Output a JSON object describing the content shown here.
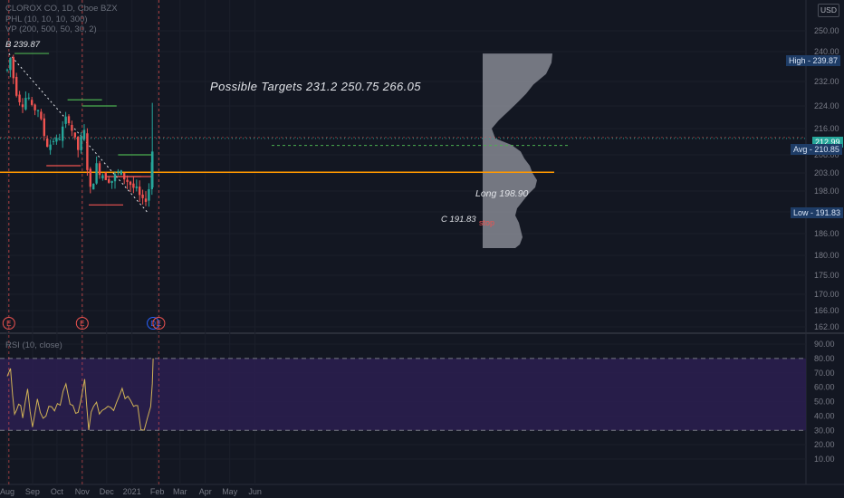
{
  "header": {
    "symbol_line": "CLOROX CO, 1D, Cboe BZX",
    "indicator_phl": "PHL (10, 10, 10, 300)",
    "indicator_vp": "VP (200, 500, 50, 30, 2)",
    "currency_button": "USD"
  },
  "annotations": {
    "b_label": "B 239.87",
    "targets": "Possible Targets  231.2  250.75  266.05",
    "long": "Long 198.90",
    "c_label": "C 191.83",
    "stop": "stop"
  },
  "price_tags": {
    "high": "High - 239.87",
    "last": "212.99",
    "avg": "Avg - 210.85",
    "low": "Low - 191.83"
  },
  "rsi_panel": {
    "title": "RSI (10, close)"
  },
  "events": [
    "E",
    "E",
    "D",
    "E"
  ],
  "colors": {
    "background": "#131722",
    "up": "#26a69a",
    "down": "#ef5350",
    "rsi": "#d1b356",
    "rsi_band": "#2a1e4e",
    "support": "#ff9800"
  },
  "chart_data": [
    {
      "type": "candlestick",
      "title": "CLOROX CO, 1D, Cboe BZX",
      "price_axis_ticks": [
        250.0,
        240.0,
        232.0,
        224.0,
        216.0,
        208.0,
        203.0,
        198.0,
        192.0,
        186.0,
        180.0,
        175.0,
        170.0,
        166.0,
        162.0
      ],
      "time_axis_ticks": [
        "Aug",
        "Sep",
        "Oct",
        "Nov",
        "Dec",
        "2021",
        "Feb",
        "Mar",
        "Apr",
        "May",
        "Jun"
      ],
      "close_path": [
        [
          "2020-08-01",
          235
        ],
        [
          "2020-08-05",
          238.5
        ],
        [
          "2020-08-10",
          231
        ],
        [
          "2020-08-14",
          227
        ],
        [
          "2020-08-20",
          225
        ],
        [
          "2020-08-26",
          228
        ],
        [
          "2020-09-01",
          222
        ],
        [
          "2020-09-07",
          224
        ],
        [
          "2020-09-14",
          215
        ],
        [
          "2020-09-21",
          210
        ],
        [
          "2020-09-25",
          213
        ],
        [
          "2020-10-01",
          212
        ],
        [
          "2020-10-07",
          215
        ],
        [
          "2020-10-14",
          221
        ],
        [
          "2020-10-20",
          215
        ],
        [
          "2020-10-26",
          209
        ],
        [
          "2020-10-30",
          212
        ],
        [
          "2020-11-04",
          215
        ],
        [
          "2020-11-06",
          211
        ],
        [
          "2020-11-09",
          196
        ],
        [
          "2020-11-13",
          200
        ],
        [
          "2020-11-19",
          205
        ],
        [
          "2020-11-25",
          203
        ],
        [
          "2020-12-01",
          202
        ],
        [
          "2020-12-08",
          201
        ],
        [
          "2020-12-15",
          203
        ],
        [
          "2020-12-22",
          202
        ],
        [
          "2020-12-30",
          200
        ],
        [
          "2021-01-06",
          198
        ],
        [
          "2021-01-11",
          196
        ],
        [
          "2021-01-15",
          194
        ],
        [
          "2021-01-19",
          197
        ],
        [
          "2021-01-22",
          199
        ],
        [
          "2021-01-26",
          207
        ],
        [
          "2021-01-27",
          213
        ]
      ],
      "lines": {
        "support_horizontal": 203.2,
        "avg": 210.85,
        "last_price": 212.99,
        "resistance_dotted": 213.3
      },
      "high": 239.87,
      "low": 191.83,
      "last": 212.99,
      "avg": 210.85
    },
    {
      "type": "line",
      "title": "RSI (10, close)",
      "y_axis_ticks": [
        90.0,
        80.0,
        70.0,
        60.0,
        50.0,
        40.0,
        30.0,
        20.0,
        10.0
      ],
      "bands": [
        30,
        80
      ],
      "rsi_path": [
        [
          "2020-08-01",
          68
        ],
        [
          "2020-08-05",
          72
        ],
        [
          "2020-08-10",
          42
        ],
        [
          "2020-08-15",
          52
        ],
        [
          "2020-08-20",
          38
        ],
        [
          "2020-08-26",
          55
        ],
        [
          "2020-09-01",
          35
        ],
        [
          "2020-09-07",
          50
        ],
        [
          "2020-09-14",
          38
        ],
        [
          "2020-09-21",
          45
        ],
        [
          "2020-09-28",
          44
        ],
        [
          "2020-10-05",
          48
        ],
        [
          "2020-10-12",
          66
        ],
        [
          "2020-10-17",
          52
        ],
        [
          "2020-10-24",
          38
        ],
        [
          "2020-10-30",
          50
        ],
        [
          "2020-11-04",
          63
        ],
        [
          "2020-11-09",
          30
        ],
        [
          "2020-11-15",
          48
        ],
        [
          "2020-11-22",
          44
        ],
        [
          "2020-11-29",
          46
        ],
        [
          "2020-12-06",
          42
        ],
        [
          "2020-12-13",
          50
        ],
        [
          "2020-12-20",
          56
        ],
        [
          "2020-12-27",
          52
        ],
        [
          "2021-01-03",
          44
        ],
        [
          "2021-01-08",
          48
        ],
        [
          "2021-01-12",
          30
        ],
        [
          "2021-01-16",
          27
        ],
        [
          "2021-01-20",
          42
        ],
        [
          "2021-01-24",
          44
        ],
        [
          "2021-01-26",
          60
        ],
        [
          "2021-01-27",
          80
        ]
      ]
    }
  ]
}
